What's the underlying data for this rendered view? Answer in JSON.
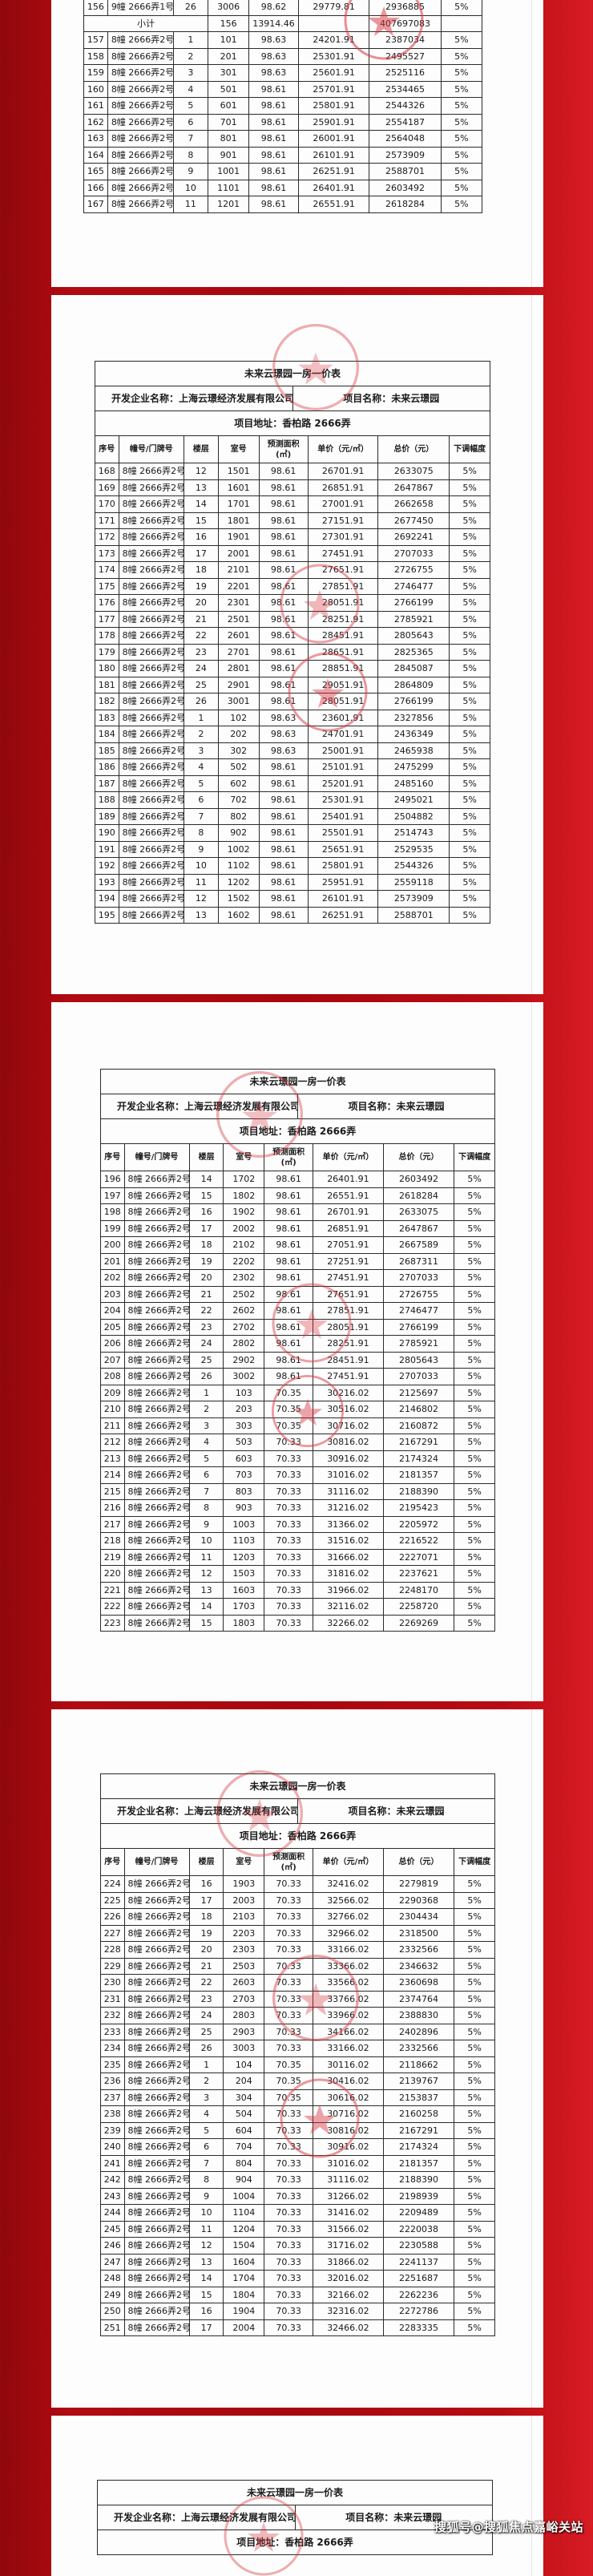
{
  "header": {
    "title": "未来云璟园一房一价表",
    "developer": "开发企业名称：上海云璟经济发展有限公司",
    "project": "项目名称：未来云璟园",
    "address": "项目地址：香柏路 2666弄"
  },
  "columns": [
    "序号",
    "幢号/门牌号",
    "楼层",
    "室号",
    "预测面积",
    "(㎡)",
    "单价（元/㎡）",
    "总价（元）",
    "下调幅度"
  ],
  "subtotal": {
    "label": "小计",
    "units": "156",
    "area": "13914.46",
    "total": "407697083"
  },
  "pages": [
    {
      "rows": [
        [
          "156",
          "9幢 2666弄1号",
          "26",
          "3006",
          "98.62",
          "29779.81",
          "2936885",
          "5%"
        ]
      ],
      "rows_after_subtotal": [
        [
          "157",
          "8幢 2666弄2号",
          "1",
          "101",
          "98.63",
          "24201.91",
          "2387034",
          "5%"
        ],
        [
          "158",
          "8幢 2666弄2号",
          "2",
          "201",
          "98.63",
          "25301.91",
          "2495527",
          "5%"
        ],
        [
          "159",
          "8幢 2666弄2号",
          "3",
          "301",
          "98.63",
          "25601.91",
          "2525116",
          "5%"
        ],
        [
          "160",
          "8幢 2666弄2号",
          "4",
          "501",
          "98.61",
          "25701.91",
          "2534465",
          "5%"
        ],
        [
          "161",
          "8幢 2666弄2号",
          "5",
          "601",
          "98.61",
          "25801.91",
          "2544326",
          "5%"
        ],
        [
          "162",
          "8幢 2666弄2号",
          "6",
          "701",
          "98.61",
          "25901.91",
          "2554187",
          "5%"
        ],
        [
          "163",
          "8幢 2666弄2号",
          "7",
          "801",
          "98.61",
          "26001.91",
          "2564048",
          "5%"
        ],
        [
          "164",
          "8幢 2666弄2号",
          "8",
          "901",
          "98.61",
          "26101.91",
          "2573909",
          "5%"
        ],
        [
          "165",
          "8幢 2666弄2号",
          "9",
          "1001",
          "98.61",
          "26251.91",
          "2588701",
          "5%"
        ],
        [
          "166",
          "8幢 2666弄2号",
          "10",
          "1101",
          "98.61",
          "26401.91",
          "2603492",
          "5%"
        ],
        [
          "167",
          "8幢 2666弄2号",
          "11",
          "1201",
          "98.61",
          "26551.91",
          "2618284",
          "5%"
        ]
      ]
    },
    {
      "rows": [
        [
          "168",
          "8幢 2666弄2号",
          "12",
          "1501",
          "98.61",
          "26701.91",
          "2633075",
          "5%"
        ],
        [
          "169",
          "8幢 2666弄2号",
          "13",
          "1601",
          "98.61",
          "26851.91",
          "2647867",
          "5%"
        ],
        [
          "170",
          "8幢 2666弄2号",
          "14",
          "1701",
          "98.61",
          "27001.91",
          "2662658",
          "5%"
        ],
        [
          "171",
          "8幢 2666弄2号",
          "15",
          "1801",
          "98.61",
          "27151.91",
          "2677450",
          "5%"
        ],
        [
          "172",
          "8幢 2666弄2号",
          "16",
          "1901",
          "98.61",
          "27301.91",
          "2692241",
          "5%"
        ],
        [
          "173",
          "8幢 2666弄2号",
          "17",
          "2001",
          "98.61",
          "27451.91",
          "2707033",
          "5%"
        ],
        [
          "174",
          "8幢 2666弄2号",
          "18",
          "2101",
          "98.61",
          "27651.91",
          "2726755",
          "5%"
        ],
        [
          "175",
          "8幢 2666弄2号",
          "19",
          "2201",
          "98.61",
          "27851.91",
          "2746477",
          "5%"
        ],
        [
          "176",
          "8幢 2666弄2号",
          "20",
          "2301",
          "98.61",
          "28051.91",
          "2766199",
          "5%"
        ],
        [
          "177",
          "8幢 2666弄2号",
          "21",
          "2501",
          "98.61",
          "28251.91",
          "2785921",
          "5%"
        ],
        [
          "178",
          "8幢 2666弄2号",
          "22",
          "2601",
          "98.61",
          "28451.91",
          "2805643",
          "5%"
        ],
        [
          "179",
          "8幢 2666弄2号",
          "23",
          "2701",
          "98.61",
          "28651.91",
          "2825365",
          "5%"
        ],
        [
          "180",
          "8幢 2666弄2号",
          "24",
          "2801",
          "98.61",
          "28851.91",
          "2845087",
          "5%"
        ],
        [
          "181",
          "8幢 2666弄2号",
          "25",
          "2901",
          "98.61",
          "29051.91",
          "2864809",
          "5%"
        ],
        [
          "182",
          "8幢 2666弄2号",
          "26",
          "3001",
          "98.61",
          "28051.91",
          "2766199",
          "5%"
        ],
        [
          "183",
          "8幢 2666弄2号",
          "1",
          "102",
          "98.63",
          "23601.91",
          "2327856",
          "5%"
        ],
        [
          "184",
          "8幢 2666弄2号",
          "2",
          "202",
          "98.63",
          "24701.91",
          "2436349",
          "5%"
        ],
        [
          "185",
          "8幢 2666弄2号",
          "3",
          "302",
          "98.63",
          "25001.91",
          "2465938",
          "5%"
        ],
        [
          "186",
          "8幢 2666弄2号",
          "4",
          "502",
          "98.61",
          "25101.91",
          "2475299",
          "5%"
        ],
        [
          "187",
          "8幢 2666弄2号",
          "5",
          "602",
          "98.61",
          "25201.91",
          "2485160",
          "5%"
        ],
        [
          "188",
          "8幢 2666弄2号",
          "6",
          "702",
          "98.61",
          "25301.91",
          "2495021",
          "5%"
        ],
        [
          "189",
          "8幢 2666弄2号",
          "7",
          "802",
          "98.61",
          "25401.91",
          "2504882",
          "5%"
        ],
        [
          "190",
          "8幢 2666弄2号",
          "8",
          "902",
          "98.61",
          "25501.91",
          "2514743",
          "5%"
        ],
        [
          "191",
          "8幢 2666弄2号",
          "9",
          "1002",
          "98.61",
          "25651.91",
          "2529535",
          "5%"
        ],
        [
          "192",
          "8幢 2666弄2号",
          "10",
          "1102",
          "98.61",
          "25801.91",
          "2544326",
          "5%"
        ],
        [
          "193",
          "8幢 2666弄2号",
          "11",
          "1202",
          "98.61",
          "25951.91",
          "2559118",
          "5%"
        ],
        [
          "194",
          "8幢 2666弄2号",
          "12",
          "1502",
          "98.61",
          "26101.91",
          "2573909",
          "5%"
        ],
        [
          "195",
          "8幢 2666弄2号",
          "13",
          "1602",
          "98.61",
          "26251.91",
          "2588701",
          "5%"
        ]
      ]
    },
    {
      "rows": [
        [
          "196",
          "8幢 2666弄2号",
          "14",
          "1702",
          "98.61",
          "26401.91",
          "2603492",
          "5%"
        ],
        [
          "197",
          "8幢 2666弄2号",
          "15",
          "1802",
          "98.61",
          "26551.91",
          "2618284",
          "5%"
        ],
        [
          "198",
          "8幢 2666弄2号",
          "16",
          "1902",
          "98.61",
          "26701.91",
          "2633075",
          "5%"
        ],
        [
          "199",
          "8幢 2666弄2号",
          "17",
          "2002",
          "98.61",
          "26851.91",
          "2647867",
          "5%"
        ],
        [
          "200",
          "8幢 2666弄2号",
          "18",
          "2102",
          "98.61",
          "27051.91",
          "2667589",
          "5%"
        ],
        [
          "201",
          "8幢 2666弄2号",
          "19",
          "2202",
          "98.61",
          "27251.91",
          "2687311",
          "5%"
        ],
        [
          "202",
          "8幢 2666弄2号",
          "20",
          "2302",
          "98.61",
          "27451.91",
          "2707033",
          "5%"
        ],
        [
          "203",
          "8幢 2666弄2号",
          "21",
          "2502",
          "98.61",
          "27651.91",
          "2726755",
          "5%"
        ],
        [
          "204",
          "8幢 2666弄2号",
          "22",
          "2602",
          "98.61",
          "27851.91",
          "2746477",
          "5%"
        ],
        [
          "205",
          "8幢 2666弄2号",
          "23",
          "2702",
          "98.61",
          "28051.91",
          "2766199",
          "5%"
        ],
        [
          "206",
          "8幢 2666弄2号",
          "24",
          "2802",
          "98.61",
          "28251.91",
          "2785921",
          "5%"
        ],
        [
          "207",
          "8幢 2666弄2号",
          "25",
          "2902",
          "98.61",
          "28451.91",
          "2805643",
          "5%"
        ],
        [
          "208",
          "8幢 2666弄2号",
          "26",
          "3002",
          "98.61",
          "27451.91",
          "2707033",
          "5%"
        ],
        [
          "209",
          "8幢 2666弄2号",
          "1",
          "103",
          "70.35",
          "30216.02",
          "2125697",
          "5%"
        ],
        [
          "210",
          "8幢 2666弄2号",
          "2",
          "203",
          "70.35",
          "30516.02",
          "2146802",
          "5%"
        ],
        [
          "211",
          "8幢 2666弄2号",
          "3",
          "303",
          "70.35",
          "30716.02",
          "2160872",
          "5%"
        ],
        [
          "212",
          "8幢 2666弄2号",
          "4",
          "503",
          "70.33",
          "30816.02",
          "2167291",
          "5%"
        ],
        [
          "213",
          "8幢 2666弄2号",
          "5",
          "603",
          "70.33",
          "30916.02",
          "2174324",
          "5%"
        ],
        [
          "214",
          "8幢 2666弄2号",
          "6",
          "703",
          "70.33",
          "31016.02",
          "2181357",
          "5%"
        ],
        [
          "215",
          "8幢 2666弄2号",
          "7",
          "803",
          "70.33",
          "31116.02",
          "2188390",
          "5%"
        ],
        [
          "216",
          "8幢 2666弄2号",
          "8",
          "903",
          "70.33",
          "31216.02",
          "2195423",
          "5%"
        ],
        [
          "217",
          "8幢 2666弄2号",
          "9",
          "1003",
          "70.33",
          "31366.02",
          "2205972",
          "5%"
        ],
        [
          "218",
          "8幢 2666弄2号",
          "10",
          "1103",
          "70.33",
          "31516.02",
          "2216522",
          "5%"
        ],
        [
          "219",
          "8幢 2666弄2号",
          "11",
          "1203",
          "70.33",
          "31666.02",
          "2227071",
          "5%"
        ],
        [
          "220",
          "8幢 2666弄2号",
          "12",
          "1503",
          "70.33",
          "31816.02",
          "2237621",
          "5%"
        ],
        [
          "221",
          "8幢 2666弄2号",
          "13",
          "1603",
          "70.33",
          "31966.02",
          "2248170",
          "5%"
        ],
        [
          "222",
          "8幢 2666弄2号",
          "14",
          "1703",
          "70.33",
          "32116.02",
          "2258720",
          "5%"
        ],
        [
          "223",
          "8幢 2666弄2号",
          "15",
          "1803",
          "70.33",
          "32266.02",
          "2269269",
          "5%"
        ]
      ]
    },
    {
      "rows": [
        [
          "224",
          "8幢 2666弄2号",
          "16",
          "1903",
          "70.33",
          "32416.02",
          "2279819",
          "5%"
        ],
        [
          "225",
          "8幢 2666弄2号",
          "17",
          "2003",
          "70.33",
          "32566.02",
          "2290368",
          "5%"
        ],
        [
          "226",
          "8幢 2666弄2号",
          "18",
          "2103",
          "70.33",
          "32766.02",
          "2304434",
          "5%"
        ],
        [
          "227",
          "8幢 2666弄2号",
          "19",
          "2203",
          "70.33",
          "32966.02",
          "2318500",
          "5%"
        ],
        [
          "228",
          "8幢 2666弄2号",
          "20",
          "2303",
          "70.33",
          "33166.02",
          "2332566",
          "5%"
        ],
        [
          "229",
          "8幢 2666弄2号",
          "21",
          "2503",
          "70.33",
          "33366.02",
          "2346632",
          "5%"
        ],
        [
          "230",
          "8幢 2666弄2号",
          "22",
          "2603",
          "70.33",
          "33566.02",
          "2360698",
          "5%"
        ],
        [
          "231",
          "8幢 2666弄2号",
          "23",
          "2703",
          "70.33",
          "33766.02",
          "2374764",
          "5%"
        ],
        [
          "232",
          "8幢 2666弄2号",
          "24",
          "2803",
          "70.33",
          "33966.02",
          "2388830",
          "5%"
        ],
        [
          "233",
          "8幢 2666弄2号",
          "25",
          "2903",
          "70.33",
          "34166.02",
          "2402896",
          "5%"
        ],
        [
          "234",
          "8幢 2666弄2号",
          "26",
          "3003",
          "70.33",
          "33166.02",
          "2332566",
          "5%"
        ],
        [
          "235",
          "8幢 2666弄2号",
          "1",
          "104",
          "70.35",
          "30116.02",
          "2118662",
          "5%"
        ],
        [
          "236",
          "8幢 2666弄2号",
          "2",
          "204",
          "70.35",
          "30416.02",
          "2139767",
          "5%"
        ],
        [
          "237",
          "8幢 2666弄2号",
          "3",
          "304",
          "70.35",
          "30616.02",
          "2153837",
          "5%"
        ],
        [
          "238",
          "8幢 2666弄2号",
          "4",
          "504",
          "70.33",
          "30716.02",
          "2160258",
          "5%"
        ],
        [
          "239",
          "8幢 2666弄2号",
          "5",
          "604",
          "70.33",
          "30816.02",
          "2167291",
          "5%"
        ],
        [
          "240",
          "8幢 2666弄2号",
          "6",
          "704",
          "70.33",
          "30916.02",
          "2174324",
          "5%"
        ],
        [
          "241",
          "8幢 2666弄2号",
          "7",
          "804",
          "70.33",
          "31016.02",
          "2181357",
          "5%"
        ],
        [
          "242",
          "8幢 2666弄2号",
          "8",
          "904",
          "70.33",
          "31116.02",
          "2188390",
          "5%"
        ],
        [
          "243",
          "8幢 2666弄2号",
          "9",
          "1004",
          "70.33",
          "31266.02",
          "2198939",
          "5%"
        ],
        [
          "244",
          "8幢 2666弄2号",
          "10",
          "1104",
          "70.33",
          "31416.02",
          "2209489",
          "5%"
        ],
        [
          "245",
          "8幢 2666弄2号",
          "11",
          "1204",
          "70.33",
          "31566.02",
          "2220038",
          "5%"
        ],
        [
          "246",
          "8幢 2666弄2号",
          "12",
          "1504",
          "70.33",
          "31716.02",
          "2230588",
          "5%"
        ],
        [
          "247",
          "8幢 2666弄2号",
          "13",
          "1604",
          "70.33",
          "31866.02",
          "2241137",
          "5%"
        ],
        [
          "248",
          "8幢 2666弄2号",
          "14",
          "1704",
          "70.33",
          "32016.02",
          "2251687",
          "5%"
        ],
        [
          "249",
          "8幢 2666弄2号",
          "15",
          "1804",
          "70.33",
          "32166.02",
          "2262236",
          "5%"
        ],
        [
          "250",
          "8幢 2666弄2号",
          "16",
          "1904",
          "70.33",
          "32316.02",
          "2272786",
          "5%"
        ],
        [
          "251",
          "8幢 2666弄2号",
          "17",
          "2004",
          "70.33",
          "32466.02",
          "2283335",
          "5%"
        ]
      ]
    }
  ],
  "watermark": "搜狐号@搜狐焦点嘉峪关站",
  "colors": {
    "background": "#b00a12",
    "stamp": "#d8323c",
    "page": "#fdfdfd"
  }
}
